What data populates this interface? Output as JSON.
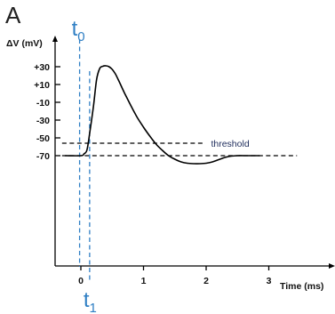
{
  "chart_data": {
    "type": "line",
    "panel_label": "A",
    "title": "",
    "xlabel": "Time (ms)",
    "ylabel": "ΔV (mV)",
    "x_ticks": [
      0,
      1,
      2,
      3
    ],
    "x_tick_labels": [
      "0",
      "1",
      "2",
      "3"
    ],
    "y_ticks": [
      30,
      10,
      -10,
      -30,
      -50,
      -70
    ],
    "y_tick_labels": [
      "+30",
      "+10",
      "-10",
      "-30",
      "-50",
      "-70"
    ],
    "xlim": [
      -0.45,
      4.0
    ],
    "ylim": [
      -86,
      42
    ],
    "grid": false,
    "legend": null,
    "series": [
      {
        "type": "line",
        "color": "#000000",
        "x": [
          -0.25,
          0.0,
          0.05,
          0.1,
          0.15,
          0.2,
          0.25,
          0.3,
          0.35,
          0.4,
          0.45,
          0.5,
          0.55,
          0.6,
          0.7,
          0.8,
          0.9,
          1.0,
          1.1,
          1.2,
          1.3,
          1.4,
          1.5,
          1.6,
          1.7,
          1.8,
          1.9,
          2.0,
          2.1,
          2.2,
          2.3,
          2.4,
          2.5,
          2.6,
          2.7,
          2.8,
          2.85
        ],
        "y": [
          -70,
          -70,
          -68,
          -63,
          -40,
          -15,
          15,
          28,
          30.5,
          31,
          30,
          27,
          22,
          15,
          0,
          -14,
          -27,
          -38,
          -48,
          -57,
          -64,
          -70,
          -74,
          -77,
          -78.5,
          -79,
          -79,
          -78.5,
          -77,
          -74.5,
          -72,
          -70.5,
          -70,
          -70,
          -70,
          -70,
          -70
        ]
      }
    ],
    "reference_lines": [
      {
        "axis": "y",
        "value": -56,
        "style": "dashed",
        "color": "#000000",
        "label": "threshold",
        "x_from": -0.3,
        "x_to": 1.95
      },
      {
        "axis": "y",
        "value": -70,
        "style": "dashed",
        "color": "#000000",
        "label": "",
        "x_from": -0.3,
        "x_to": 3.45
      },
      {
        "axis": "x",
        "value": -0.02,
        "style": "dashed",
        "color": "#2f7fc4",
        "label": "t",
        "subscript": "0"
      },
      {
        "axis": "x",
        "value": 0.14,
        "style": "dashed",
        "color": "#2f7fc4",
        "label": "t",
        "subscript": "1"
      }
    ]
  }
}
